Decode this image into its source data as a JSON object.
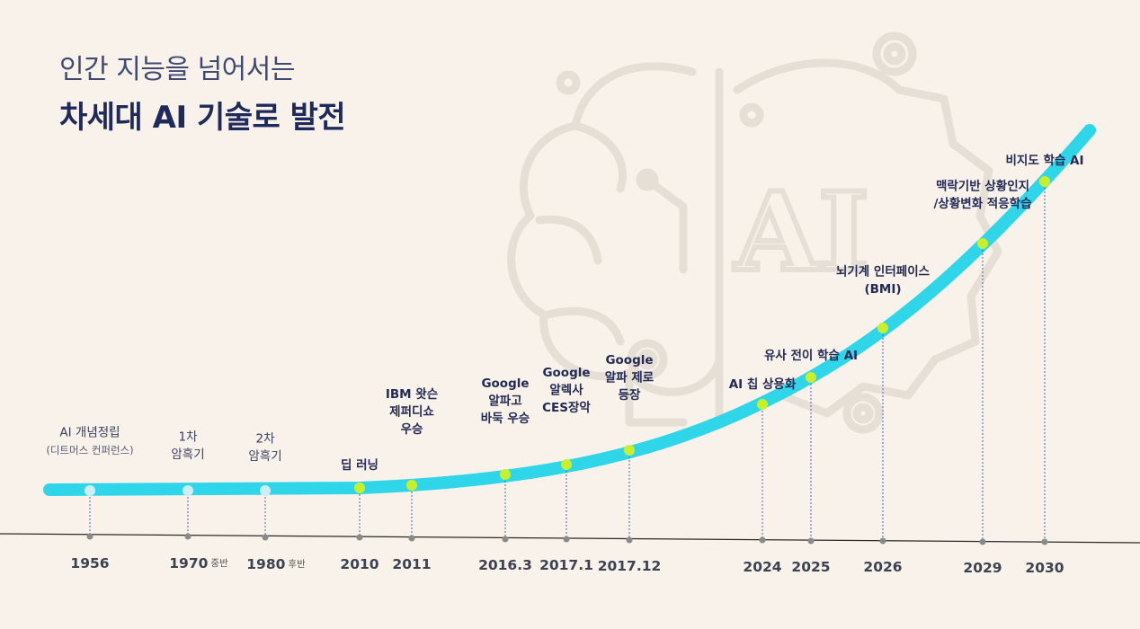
{
  "heading": {
    "line1": "인간 지능을  넘어서는",
    "line2": "차세대 AI 기술로 발전"
  },
  "watermark": {
    "text": "AI"
  },
  "colors": {
    "background": "#f8f2ea",
    "curve": "#2fd6ea",
    "point_active": "#c8ef2a",
    "point_inactive": "#cfeef4",
    "title": "#1f2a5c",
    "axis": "#2a2a2a"
  },
  "chart_data": {
    "type": "timeline",
    "milestones": [
      {
        "year": "1956",
        "suffix": "",
        "label": [
          "AI 개념정립",
          "(디트머스 컨퍼런스)"
        ],
        "active": false
      },
      {
        "year": "1970",
        "suffix": "중반",
        "label": [
          "1차",
          "암흑기"
        ],
        "active": false
      },
      {
        "year": "1980",
        "suffix": "후반",
        "label": [
          "2차",
          "암흑기"
        ],
        "active": false
      },
      {
        "year": "2010",
        "suffix": "",
        "label": [
          "딥 러닝"
        ],
        "active": true
      },
      {
        "year": "2011",
        "suffix": "",
        "label": [
          "IBM 왓슨",
          "제퍼디쇼",
          "우승"
        ],
        "active": true
      },
      {
        "year": "2016.3",
        "suffix": "",
        "label": [
          "Google",
          "알파고",
          "바둑 우승"
        ],
        "active": true
      },
      {
        "year": "2017.1",
        "suffix": "",
        "label": [
          "Google",
          "알렉사",
          "CES장악"
        ],
        "active": true
      },
      {
        "year": "2017.12",
        "suffix": "",
        "label": [
          "Google",
          "알파 제로",
          "등장"
        ],
        "active": true
      },
      {
        "year": "2024",
        "suffix": "",
        "label": [
          "AI 칩 상용화"
        ],
        "active": true
      },
      {
        "year": "2025",
        "suffix": "",
        "label": [
          "유사 전이 학습 AI"
        ],
        "active": true
      },
      {
        "year": "2026",
        "suffix": "",
        "label": [
          "뇌기계 인터페이스",
          "(BMI)"
        ],
        "active": true
      },
      {
        "year": "2029",
        "suffix": "",
        "label": [
          "맥락기반 상황인지",
          "/상황변화 적응학습"
        ],
        "active": true
      },
      {
        "year": "2030",
        "suffix": "",
        "label": [
          "비지도 학습 AI"
        ],
        "active": true
      }
    ]
  }
}
